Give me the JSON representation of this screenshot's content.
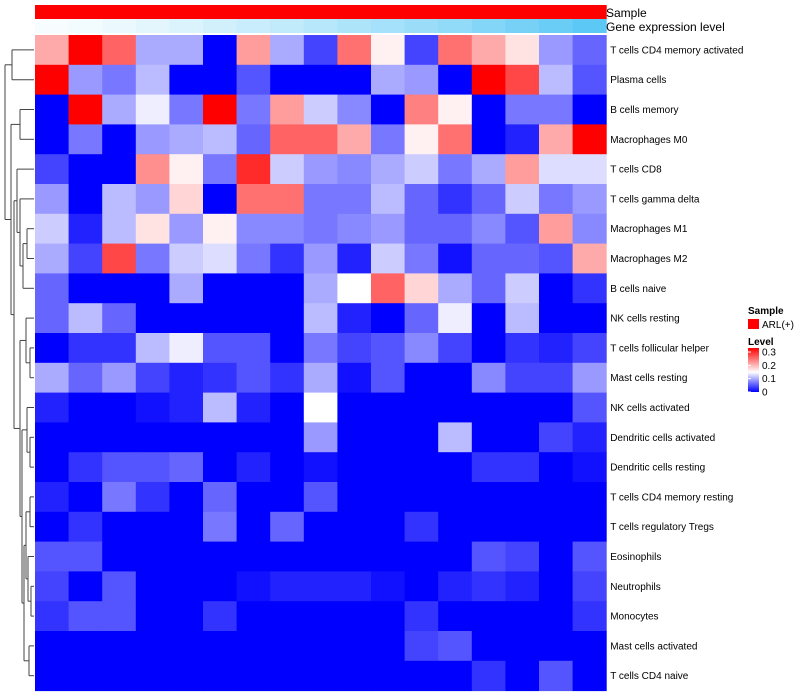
{
  "chart_data": {
    "type": "heatmap",
    "title": "",
    "column_annotations": [
      {
        "name": "Sample",
        "color": "#ff0000"
      },
      {
        "name": "Gene expression level",
        "low_color": "#ffffff",
        "high_color": "#5bc8f5"
      }
    ],
    "rows": [
      "T cells CD4 memory activated",
      "Plasma cells",
      "B cells memory",
      "Macrophages M0",
      "T cells CD8",
      "T cells gamma delta",
      "Macrophages M1",
      "Macrophages M2",
      "B cells naive",
      "NK cells resting",
      "T cells follicular helper",
      "Mast cells resting",
      "NK cells activated",
      "Dendritic cells activated",
      "Dendritic cells resting",
      "T cells CD4 memory resting",
      "T cells regulatory  Tregs",
      "Eosinophils",
      "Neutrophils",
      "Monocytes",
      "Mast cells activated",
      "T cells CD4 naive"
    ],
    "n_columns": 17,
    "values": [
      [
        0.21,
        0.33,
        0.26,
        0.1,
        0.1,
        0.0,
        0.22,
        0.1,
        0.04,
        0.25,
        0.16,
        0.04,
        0.25,
        0.21,
        0.17,
        0.09,
        0.06
      ],
      [
        0.33,
        0.09,
        0.07,
        0.11,
        0.0,
        0.0,
        0.05,
        0.0,
        0.0,
        0.0,
        0.1,
        0.09,
        0.0,
        0.33,
        0.28,
        0.11,
        0.05
      ],
      [
        0.0,
        0.33,
        0.1,
        0.14,
        0.07,
        0.33,
        0.07,
        0.22,
        0.12,
        0.08,
        0.0,
        0.24,
        0.16,
        0.0,
        0.07,
        0.07,
        0.0
      ],
      [
        0.0,
        0.07,
        0.0,
        0.09,
        0.1,
        0.11,
        0.06,
        0.26,
        0.26,
        0.21,
        0.07,
        0.16,
        0.25,
        0.0,
        0.02,
        0.21,
        0.33
      ],
      [
        0.04,
        0.0,
        0.0,
        0.23,
        0.16,
        0.07,
        0.3,
        0.12,
        0.09,
        0.08,
        0.1,
        0.12,
        0.07,
        0.1,
        0.22,
        0.13,
        0.13
      ],
      [
        0.09,
        0.0,
        0.11,
        0.09,
        0.18,
        0.0,
        0.25,
        0.25,
        0.07,
        0.07,
        0.11,
        0.06,
        0.03,
        0.06,
        0.12,
        0.07,
        0.09
      ],
      [
        0.12,
        0.02,
        0.11,
        0.17,
        0.09,
        0.16,
        0.08,
        0.08,
        0.07,
        0.08,
        0.09,
        0.06,
        0.06,
        0.08,
        0.05,
        0.22,
        0.08
      ],
      [
        0.1,
        0.04,
        0.28,
        0.07,
        0.12,
        0.13,
        0.07,
        0.03,
        0.09,
        0.02,
        0.12,
        0.07,
        0.01,
        0.06,
        0.06,
        0.05,
        0.21
      ],
      [
        0.06,
        0.0,
        0.0,
        0.0,
        0.1,
        0.0,
        0.0,
        0.0,
        0.1,
        0.15,
        0.26,
        0.18,
        0.1,
        0.06,
        0.12,
        0.0,
        0.03
      ],
      [
        0.06,
        0.11,
        0.06,
        0.0,
        0.0,
        0.0,
        0.0,
        0.0,
        0.11,
        0.02,
        0.0,
        0.06,
        0.14,
        0.0,
        0.11,
        0.0,
        0.0
      ],
      [
        0.0,
        0.03,
        0.03,
        0.11,
        0.14,
        0.05,
        0.05,
        0.0,
        0.07,
        0.04,
        0.05,
        0.08,
        0.04,
        0.0,
        0.03,
        0.02,
        0.04
      ],
      [
        0.1,
        0.06,
        0.09,
        0.04,
        0.02,
        0.03,
        0.05,
        0.03,
        0.1,
        0.01,
        0.05,
        0.0,
        0.0,
        0.08,
        0.04,
        0.04,
        0.09
      ],
      [
        0.02,
        0.0,
        0.0,
        0.01,
        0.02,
        0.11,
        0.02,
        0.0,
        0.15,
        0.0,
        0.0,
        0.0,
        0.0,
        0.0,
        0.0,
        0.0,
        0.05
      ],
      [
        0.0,
        0.0,
        0.0,
        0.0,
        0.0,
        0.0,
        0.0,
        0.0,
        0.09,
        0.0,
        0.0,
        0.0,
        0.11,
        0.0,
        0.0,
        0.04,
        0.02
      ],
      [
        0.0,
        0.03,
        0.05,
        0.05,
        0.06,
        0.0,
        0.02,
        0.0,
        0.01,
        0.0,
        0.0,
        0.0,
        0.0,
        0.03,
        0.03,
        0.0,
        0.01
      ],
      [
        0.02,
        0.0,
        0.07,
        0.03,
        0.0,
        0.06,
        0.0,
        0.0,
        0.05,
        0.0,
        0.0,
        0.0,
        0.0,
        0.0,
        0.0,
        0.0,
        0.0
      ],
      [
        0.0,
        0.03,
        0.0,
        0.0,
        0.0,
        0.07,
        0.0,
        0.06,
        0.0,
        0.0,
        0.0,
        0.03,
        0.0,
        0.0,
        0.0,
        0.0,
        0.0
      ],
      [
        0.05,
        0.05,
        0.0,
        0.0,
        0.0,
        0.0,
        0.0,
        0.0,
        0.0,
        0.0,
        0.0,
        0.0,
        0.0,
        0.05,
        0.04,
        0.0,
        0.05
      ],
      [
        0.04,
        0.0,
        0.05,
        0.0,
        0.0,
        0.0,
        0.01,
        0.02,
        0.02,
        0.02,
        0.01,
        0.0,
        0.02,
        0.03,
        0.02,
        0.0,
        0.04
      ],
      [
        0.03,
        0.05,
        0.05,
        0.0,
        0.0,
        0.03,
        0.0,
        0.0,
        0.0,
        0.0,
        0.0,
        0.03,
        0.0,
        0.0,
        0.0,
        0.0,
        0.03
      ],
      [
        0.0,
        0.0,
        0.0,
        0.0,
        0.0,
        0.0,
        0.0,
        0.0,
        0.0,
        0.0,
        0.0,
        0.04,
        0.05,
        0.0,
        0.0,
        0.0,
        0.0
      ],
      [
        0.0,
        0.0,
        0.0,
        0.0,
        0.0,
        0.0,
        0.0,
        0.0,
        0.0,
        0.0,
        0.0,
        0.0,
        0.0,
        0.03,
        0.0,
        0.05,
        0.0
      ]
    ],
    "gene_expression_level": [
      0.05,
      0.08,
      0.12,
      0.17,
      0.22,
      0.28,
      0.33,
      0.38,
      0.44,
      0.5,
      0.55,
      0.61,
      0.67,
      0.75,
      0.83,
      0.91,
      1.0
    ],
    "color_scale": {
      "min": 0,
      "mid": 0.15,
      "max": 0.33,
      "low": "#0000ff",
      "mid_color": "#ffffff",
      "high": "#ff0000"
    },
    "legend": {
      "sample_title": "Sample",
      "sample_entry": "ARL(+)",
      "level_title": "Level",
      "level_ticks": [
        {
          "value": 0.3,
          "label": "0.3"
        },
        {
          "value": 0.2,
          "label": "0.2"
        },
        {
          "value": 0.1,
          "label": "0.1"
        },
        {
          "value": 0.0,
          "label": "0"
        }
      ]
    },
    "dendrogram": {
      "pairs": [
        [
          20,
          21
        ],
        [
          18,
          19
        ],
        [
          15,
          16
        ],
        [
          13,
          14
        ],
        [
          10,
          11
        ],
        [
          6,
          7
        ],
        [
          0,
          1
        ],
        [
          2,
          3
        ],
        [
          17,
          "18-19"
        ]
      ],
      "position": "left"
    }
  }
}
